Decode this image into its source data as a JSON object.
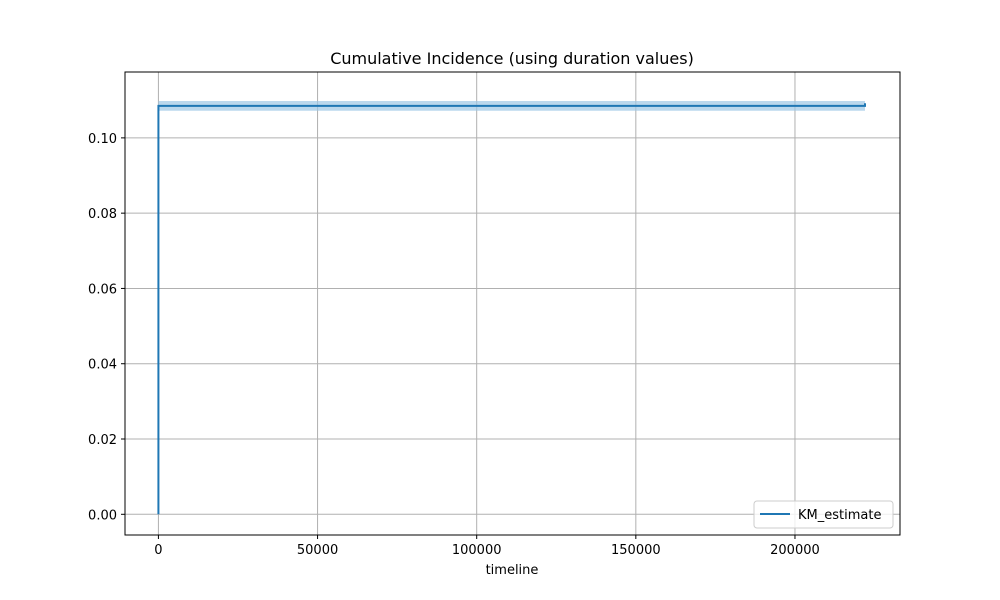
{
  "chart_data": {
    "type": "line",
    "title": "Cumulative Incidence (using duration values)",
    "xlabel": "timeline",
    "ylabel": "",
    "xlim": [
      -10500,
      233000
    ],
    "ylim": [
      -0.0055,
      0.1175
    ],
    "xticks": [
      0,
      50000,
      100000,
      150000,
      200000
    ],
    "xtick_labels": [
      "0",
      "50000",
      "100000",
      "150000",
      "200000"
    ],
    "yticks": [
      0.0,
      0.02,
      0.04,
      0.06,
      0.08,
      0.1
    ],
    "ytick_labels": [
      "0.00",
      "0.02",
      "0.04",
      "0.06",
      "0.08",
      "0.10"
    ],
    "grid": true,
    "legend_position": "lower-right",
    "series": [
      {
        "name": "KM_estimate",
        "color": "#1f77b4",
        "x": [
          0,
          0,
          222000
        ],
        "y": [
          0.0,
          0.1085,
          0.1092
        ],
        "ci_lower": [
          0.0,
          0.1072,
          0.1072
        ],
        "ci_upper": [
          0.0,
          0.1098,
          0.1118
        ]
      }
    ]
  },
  "colors": {
    "line": "#1f77b4",
    "ci_fill": "#9ec7e6",
    "grid": "#b0b0b0",
    "axes": "#000000"
  }
}
